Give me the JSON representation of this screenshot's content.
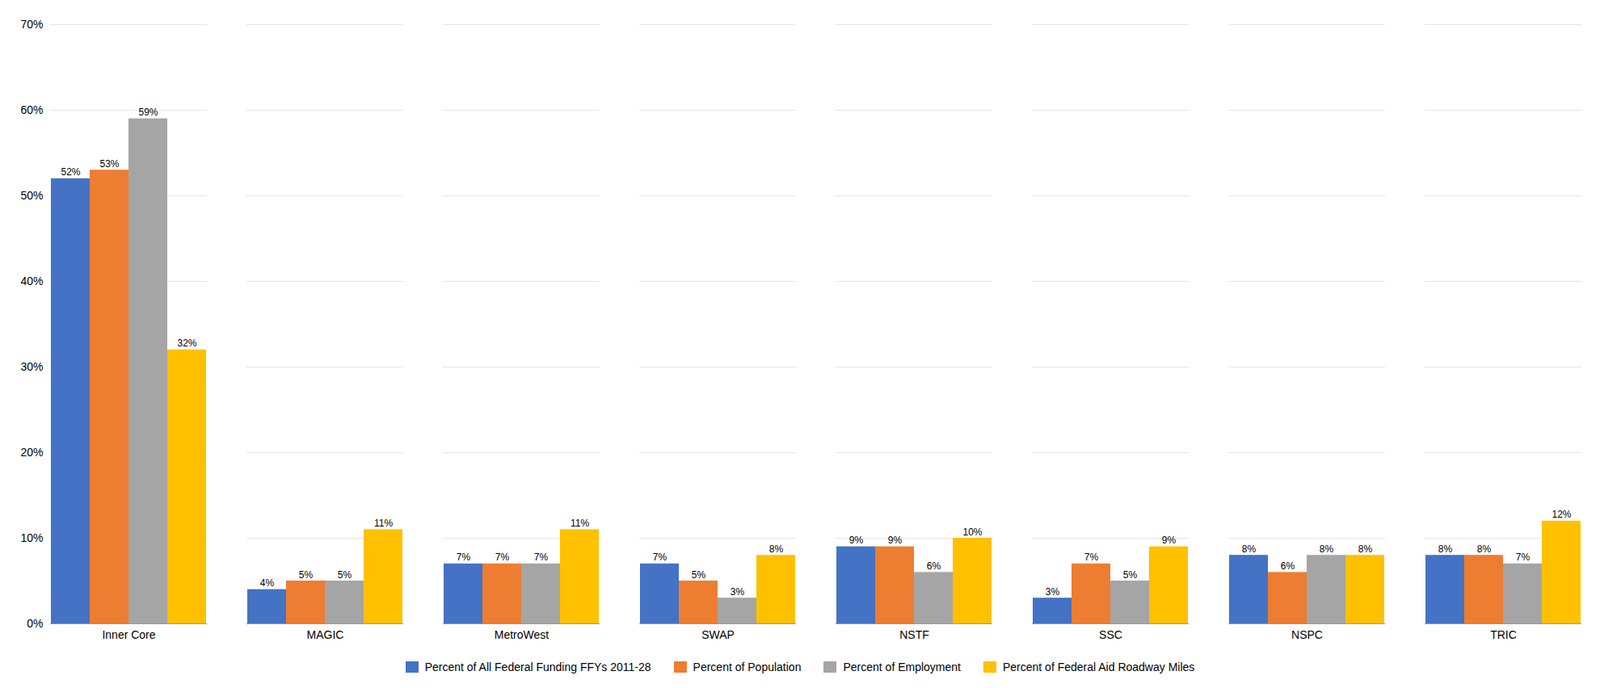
{
  "chart_data": {
    "type": "bar",
    "categories": [
      "Inner Core",
      "MAGIC",
      "MetroWest",
      "SWAP",
      "NSTF",
      "SSC",
      "NSPC",
      "TRIC"
    ],
    "series": [
      {
        "name": "Percent of All Federal Funding FFYs 2011-28",
        "color": "#4472C4",
        "values": [
          52,
          4,
          7,
          7,
          9,
          3,
          8,
          8
        ],
        "value_labels": [
          "52%",
          "4%",
          "7%",
          "7%",
          "9%",
          "3%",
          "8%",
          "8%"
        ]
      },
      {
        "name": "Percent of Population",
        "color": "#ED7D31",
        "values": [
          53,
          5,
          7,
          5,
          9,
          7,
          6,
          8
        ],
        "value_labels": [
          "53%",
          "5%",
          "7%",
          "5%",
          "9%",
          "7%",
          "6%",
          "8%"
        ]
      },
      {
        "name": "Percent of Employment",
        "color": "#A5A5A5",
        "values": [
          59,
          5,
          7,
          3,
          6,
          5,
          8,
          7
        ],
        "value_labels": [
          "59%",
          "5%",
          "7%",
          "3%",
          "6%",
          "5%",
          "8%",
          "7%"
        ]
      },
      {
        "name": "Percent of Federal Aid Roadway Miles",
        "color": "#FFC000",
        "values": [
          32,
          11,
          11,
          8,
          10,
          9,
          8,
          12
        ],
        "value_labels": [
          "32%",
          "11%",
          "11%",
          "8%",
          "10%",
          "9%",
          "8%",
          "12%"
        ]
      }
    ],
    "ylim": [
      0,
      70
    ],
    "yticks": [
      {
        "value": 0,
        "label": "0%"
      },
      {
        "value": 10,
        "label": "10%"
      },
      {
        "value": 20,
        "label": "20%"
      },
      {
        "value": 30,
        "label": "30%"
      },
      {
        "value": 40,
        "label": "40%"
      },
      {
        "value": 50,
        "label": "50%"
      },
      {
        "value": 60,
        "label": "60%"
      },
      {
        "value": 70,
        "label": "70%"
      }
    ],
    "grid": true,
    "legend": "bottom",
    "data_labels": true
  }
}
